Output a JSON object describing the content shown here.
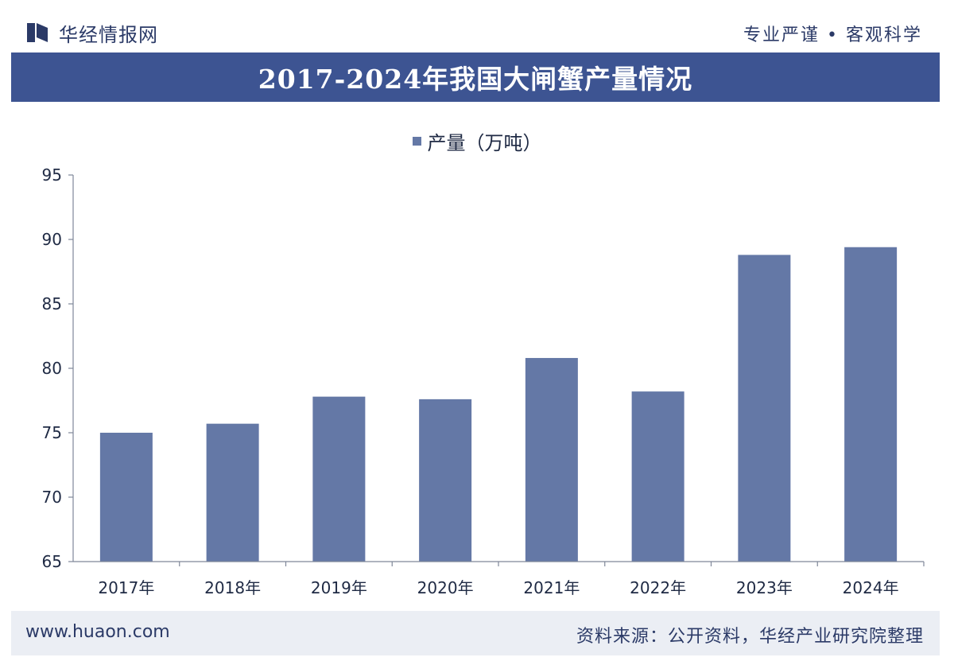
{
  "header": {
    "brand_name": "华经情报网",
    "slogan": "专业严谨 • 客观科学",
    "logo_icon": "bookmark-logo-icon"
  },
  "title": "2017-2024年我国大闸蟹产量情况",
  "footer": {
    "url": "www.huaon.com",
    "source": "资料来源：公开资料，华经产业研究院整理"
  },
  "colors": {
    "title_bar": "#3d5492",
    "bar": "#6478a6",
    "footer_bg": "#ebeef4"
  },
  "chart_data": {
    "type": "bar",
    "categories": [
      "2017年",
      "2018年",
      "2019年",
      "2020年",
      "2021年",
      "2022年",
      "2023年",
      "2024年"
    ],
    "series": [
      {
        "name": "产量（万吨）",
        "values": [
          75.0,
          75.7,
          77.8,
          77.6,
          80.8,
          78.2,
          88.8,
          89.4
        ]
      }
    ],
    "yticks": [
      "65",
      "70",
      "75",
      "80",
      "85",
      "90",
      "95"
    ],
    "ylim": [
      65,
      95
    ],
    "legend_position": "top-center",
    "grid": false
  }
}
